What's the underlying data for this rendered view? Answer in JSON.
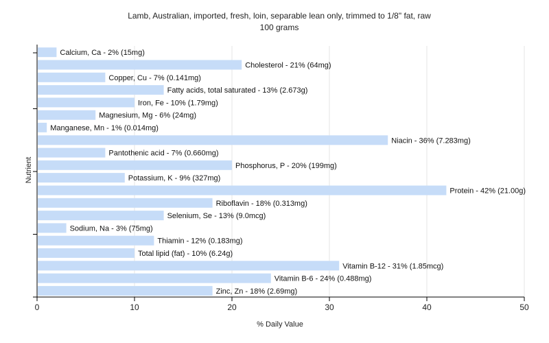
{
  "chart_data": {
    "type": "bar",
    "orientation": "horizontal",
    "title": "Lamb, Australian, imported, fresh, loin, separable lean only, trimmed to 1/8\" fat, raw",
    "subtitle": "100 grams",
    "xlabel": "% Daily Value",
    "ylabel": "Nutrient",
    "xlim": [
      0,
      50
    ],
    "xticks": [
      0,
      10,
      20,
      30,
      40,
      50
    ],
    "grid": true,
    "bar_color": "#c6dcf8",
    "categories": [
      "Calcium, Ca",
      "Cholesterol",
      "Copper, Cu",
      "Fatty acids, total saturated",
      "Iron, Fe",
      "Magnesium, Mg",
      "Manganese, Mn",
      "Niacin",
      "Pantothenic acid",
      "Phosphorus, P",
      "Potassium, K",
      "Protein",
      "Riboflavin",
      "Selenium, Se",
      "Sodium, Na",
      "Thiamin",
      "Total lipid (fat)",
      "Vitamin B-12",
      "Vitamin B-6",
      "Zinc, Zn"
    ],
    "values": [
      2,
      21,
      7,
      13,
      10,
      6,
      1,
      36,
      7,
      20,
      9,
      42,
      18,
      13,
      3,
      12,
      10,
      31,
      24,
      18
    ],
    "labels": [
      "Calcium, Ca - 2% (15mg)",
      "Cholesterol - 21% (64mg)",
      "Copper, Cu - 7% (0.141mg)",
      "Fatty acids, total saturated - 13% (2.673g)",
      "Iron, Fe - 10% (1.79mg)",
      "Magnesium, Mg - 6% (24mg)",
      "Manganese, Mn - 1% (0.014mg)",
      "Niacin - 36% (7.283mg)",
      "Pantothenic acid - 7% (0.660mg)",
      "Phosphorus, P - 20% (199mg)",
      "Potassium, K - 9% (327mg)",
      "Protein - 42% (21.00g)",
      "Riboflavin - 18% (0.313mg)",
      "Selenium, Se - 13% (9.0mcg)",
      "Sodium, Na - 3% (75mg)",
      "Thiamin - 12% (0.183mg)",
      "Total lipid (fat) - 10% (6.24g)",
      "Vitamin B-12 - 31% (1.85mcg)",
      "Vitamin B-6 - 24% (0.488mg)",
      "Zinc, Zn - 18% (2.69mg)"
    ]
  }
}
